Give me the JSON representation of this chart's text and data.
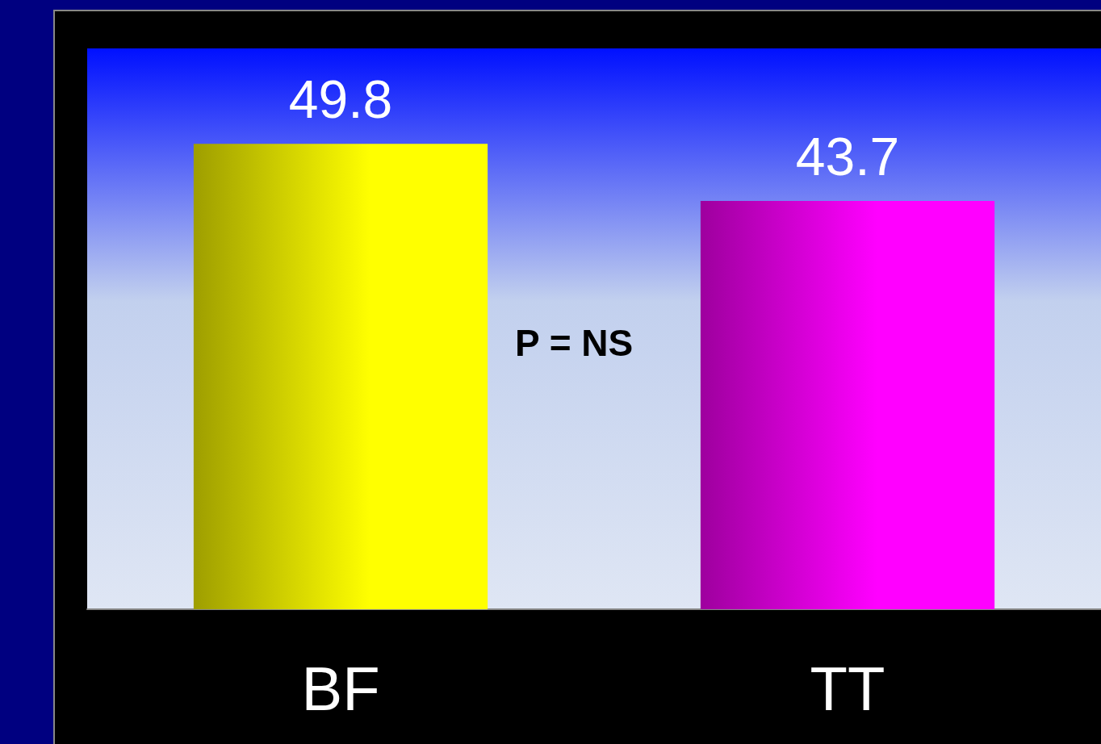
{
  "chart_data": {
    "type": "bar",
    "categories": [
      "BF",
      "TT"
    ],
    "values": [
      49.8,
      43.7
    ],
    "colors": [
      "#ffff00",
      "#ff00ff"
    ],
    "data_labels": true,
    "annotations": [
      "P = NS"
    ]
  }
}
